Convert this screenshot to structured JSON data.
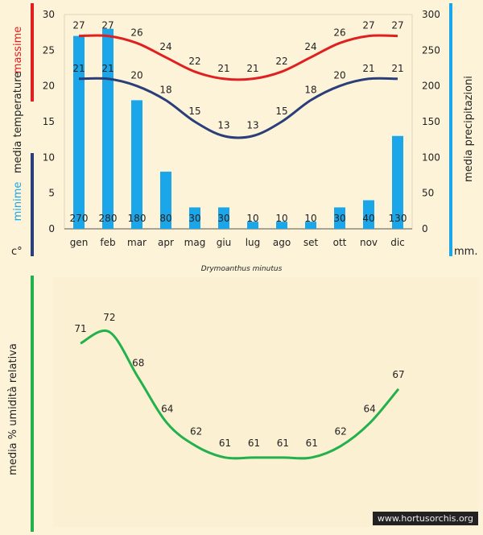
{
  "species_label": "Drymoanthus minutus",
  "watermark": "www.hortusorchis.org",
  "colors": {
    "max_temp": "#e02020",
    "min_temp": "#2a3f7a",
    "precip": "#1aa6e8",
    "humidity": "#22b14c",
    "background": "#fdf3d8"
  },
  "chart_data": [
    {
      "type": "bar",
      "categories": [
        "gen",
        "feb",
        "mar",
        "apr",
        "mag",
        "giu",
        "lug",
        "ago",
        "set",
        "ott",
        "nov",
        "dic"
      ],
      "left_axis": {
        "ylim": [
          0,
          30
        ],
        "ticks": [
          0,
          5,
          10,
          15,
          20,
          25,
          30
        ]
      },
      "right_axis": {
        "ylim": [
          0,
          300
        ],
        "ticks": [
          0,
          50,
          100,
          150,
          200,
          250,
          300
        ]
      },
      "labels": {
        "massime": "massime",
        "media_temperature": "media  temperature",
        "minime": "minime",
        "celsius": "c°",
        "media_precipitazioni": "media  precipitazioni",
        "mm": "mm."
      },
      "series": [
        {
          "name": "media precipitazioni",
          "axis": "right",
          "values": [
            270,
            280,
            180,
            80,
            30,
            30,
            10,
            10,
            10,
            30,
            40,
            130
          ]
        },
        {
          "name": "massime",
          "axis": "left",
          "values": [
            27,
            27,
            26,
            24,
            22,
            21,
            21,
            22,
            24,
            26,
            27,
            27
          ]
        },
        {
          "name": "minime",
          "axis": "left",
          "values": [
            21,
            21,
            20,
            18,
            15,
            13,
            13,
            15,
            18,
            20,
            21,
            21
          ]
        }
      ]
    },
    {
      "type": "line",
      "ylabel": "media %  umidità relativa",
      "series": [
        {
          "values": [
            71,
            72,
            68,
            64,
            62,
            61,
            61,
            61,
            61,
            62,
            64,
            67
          ]
        }
      ]
    }
  ]
}
